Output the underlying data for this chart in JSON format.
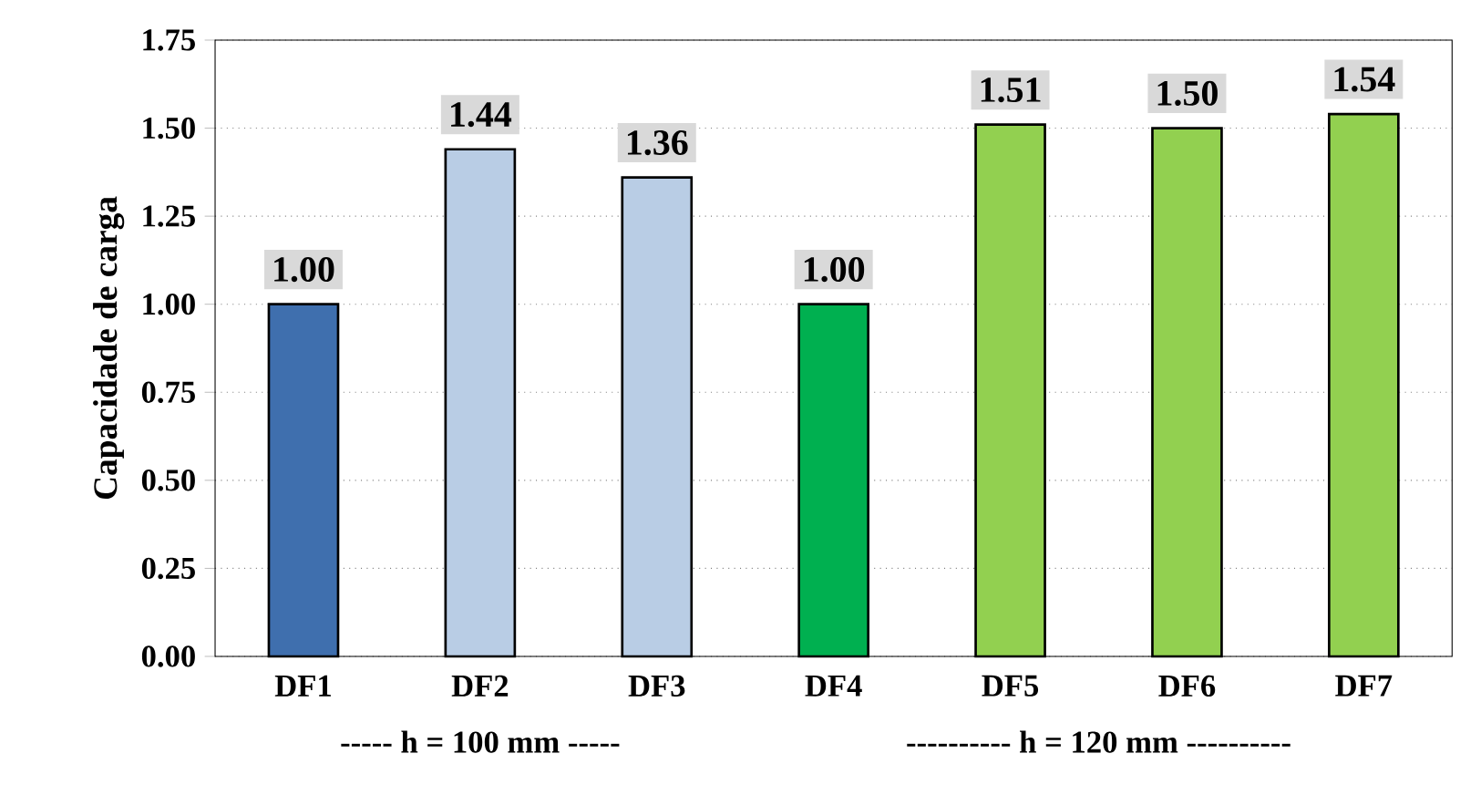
{
  "chart_data": {
    "type": "bar",
    "ylabel": "Capacidade de carga",
    "categories": [
      "DF1",
      "DF2",
      "DF3",
      "DF4",
      "DF5",
      "DF6",
      "DF7"
    ],
    "values": [
      1.0,
      1.44,
      1.36,
      1.0,
      1.51,
      1.5,
      1.54
    ],
    "value_labels": [
      "1.00",
      "1.44",
      "1.36",
      "1.00",
      "1.51",
      "1.50",
      "1.54"
    ],
    "colors": [
      "#3f6fae",
      "#b9cde5",
      "#b9cde5",
      "#00b050",
      "#92d050",
      "#92d050",
      "#92d050"
    ],
    "ylim": [
      0,
      1.75
    ],
    "yticks": [
      {
        "value": 0,
        "label": "0.00"
      },
      {
        "value": 0.25,
        "label": "0.25"
      },
      {
        "value": 0.5,
        "label": "0.50"
      },
      {
        "value": 0.75,
        "label": "0.75"
      },
      {
        "value": 1,
        "label": "1.00"
      },
      {
        "value": 1.25,
        "label": "1.25"
      },
      {
        "value": 1.5,
        "label": "1.50"
      },
      {
        "value": 1.75,
        "label": "1.75"
      }
    ],
    "grid": "y",
    "annotations": [
      "----- h = 100 mm -----",
      "---------- h = 120 mm ----------"
    ]
  }
}
